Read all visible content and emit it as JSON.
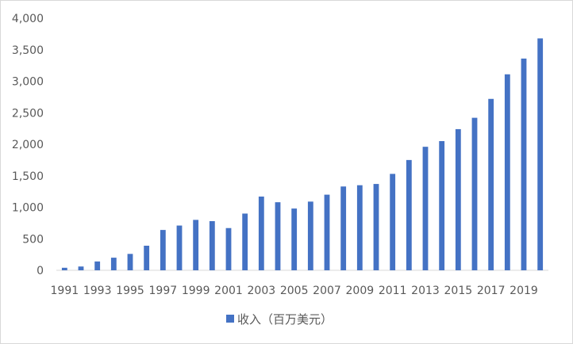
{
  "chart_data": {
    "type": "bar",
    "categories": [
      "1991",
      "1992",
      "1993",
      "1994",
      "1995",
      "1996",
      "1997",
      "1998",
      "1999",
      "2000",
      "2001",
      "2002",
      "2003",
      "2004",
      "2005",
      "2006",
      "2007",
      "2008",
      "2009",
      "2010",
      "2011",
      "2012",
      "2013",
      "2014",
      "2015",
      "2016",
      "2017",
      "2018",
      "2019",
      "2020"
    ],
    "x_tick_labels": [
      "1991",
      "1993",
      "1995",
      "1997",
      "1999",
      "2001",
      "2003",
      "2005",
      "2007",
      "2009",
      "2011",
      "2013",
      "2015",
      "2017",
      "2019"
    ],
    "y_tick_labels": [
      "0",
      "500",
      "1,000",
      "1,500",
      "2,000",
      "2,500",
      "3,000",
      "3,500",
      "4,000"
    ],
    "series": [
      {
        "name": "收入（百万美元）",
        "color": "#4472c4",
        "values": [
          40,
          60,
          140,
          200,
          260,
          390,
          640,
          710,
          800,
          780,
          670,
          900,
          1170,
          1080,
          980,
          1090,
          1200,
          1330,
          1350,
          1370,
          1530,
          1750,
          1960,
          2050,
          2240,
          2420,
          2720,
          3110,
          3360,
          3680
        ]
      }
    ],
    "ylim": [
      0,
      4000
    ],
    "grid": false,
    "legend_position": "bottom"
  }
}
